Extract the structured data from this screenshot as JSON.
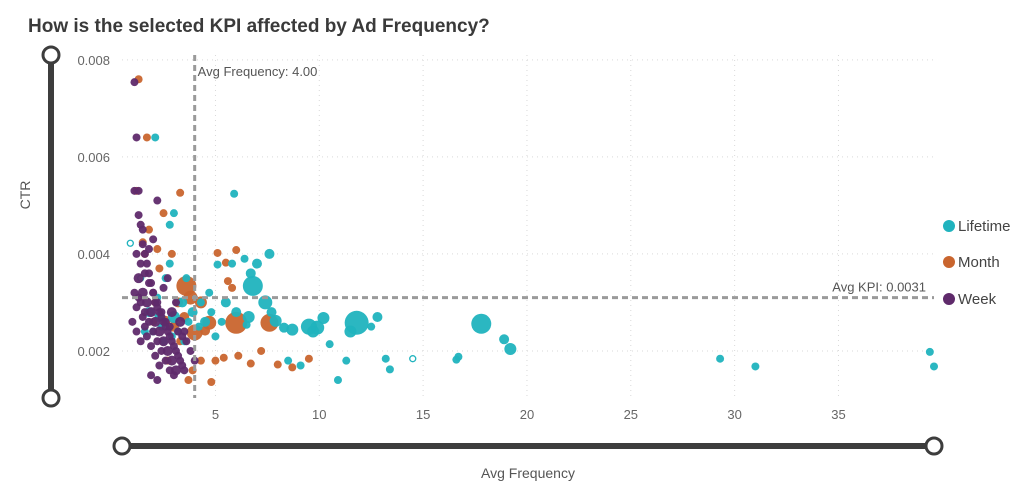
{
  "colors": {
    "Lifetime": "#20b3be",
    "Month": "#c9652e",
    "Week": "#5f2a6b",
    "refline": "#9a9a9a",
    "slider": "#3d3d3d"
  },
  "chart_data": {
    "type": "scatter",
    "title": "How is the selected KPI affected by Ad Frequency?",
    "xlabel": "Avg Frequency",
    "ylabel": "CTR",
    "xlim": [
      0.5,
      39.6
    ],
    "ylim": [
      0.00103,
      0.0081
    ],
    "xticks": [
      "5",
      "10",
      "15",
      "20",
      "25",
      "30",
      "35"
    ],
    "yticks": [
      "0.002",
      "0.004",
      "0.006",
      "0.008"
    ],
    "grid": true,
    "legend_position": "right",
    "reference_lines": {
      "x": {
        "value": 4.0,
        "label": "Avg Frequency: 4.00"
      },
      "y": {
        "value": 0.0031,
        "label": "Avg KPI: 0.0031"
      }
    },
    "series": [
      {
        "name": "Lifetime",
        "points": [
          [
            39.6,
            0.00168,
            4
          ],
          [
            39.4,
            0.00198,
            4
          ],
          [
            31.0,
            0.00168,
            4
          ],
          [
            29.3,
            0.00184,
            4
          ],
          [
            19.2,
            0.00204,
            6
          ],
          [
            18.9,
            0.00224,
            5
          ],
          [
            17.8,
            0.00256,
            10
          ],
          [
            16.7,
            0.00188,
            4
          ],
          [
            16.6,
            0.00182,
            4
          ],
          [
            13.4,
            0.00162,
            4
          ],
          [
            13.2,
            0.00184,
            4
          ],
          [
            12.8,
            0.0027,
            5
          ],
          [
            12.5,
            0.0025,
            4
          ],
          [
            11.8,
            0.00258,
            12
          ],
          [
            11.5,
            0.0024,
            6
          ],
          [
            11.3,
            0.0018,
            4
          ],
          [
            10.9,
            0.0014,
            4
          ],
          [
            10.5,
            0.00214,
            4
          ],
          [
            10.2,
            0.00268,
            6
          ],
          [
            9.9,
            0.00248,
            7
          ],
          [
            9.7,
            0.0024,
            6
          ],
          [
            9.5,
            0.0025,
            8
          ],
          [
            9.1,
            0.0017,
            4
          ],
          [
            8.7,
            0.00244,
            6
          ],
          [
            8.5,
            0.0018,
            4
          ],
          [
            8.3,
            0.00248,
            5
          ],
          [
            7.9,
            0.00262,
            6
          ],
          [
            7.7,
            0.0028,
            5
          ],
          [
            7.6,
            0.004,
            5
          ],
          [
            7.4,
            0.003,
            7
          ],
          [
            7.0,
            0.0038,
            5
          ],
          [
            6.8,
            0.00334,
            10
          ],
          [
            6.7,
            0.0036,
            5
          ],
          [
            6.6,
            0.0027,
            6
          ],
          [
            6.5,
            0.00254,
            4
          ],
          [
            6.4,
            0.0039,
            4
          ],
          [
            6.0,
            0.0028,
            5
          ],
          [
            5.9,
            0.00524,
            4
          ],
          [
            5.8,
            0.0038,
            4
          ],
          [
            5.5,
            0.003,
            5
          ],
          [
            5.3,
            0.0026,
            4
          ],
          [
            5.1,
            0.00378,
            4
          ],
          [
            5.0,
            0.0023,
            4
          ],
          [
            4.8,
            0.0028,
            4
          ],
          [
            4.7,
            0.0032,
            4
          ],
          [
            4.5,
            0.0026,
            5
          ],
          [
            4.3,
            0.003,
            4
          ],
          [
            4.2,
            0.0025,
            4
          ],
          [
            3.9,
            0.0028,
            5
          ],
          [
            3.7,
            0.0026,
            4
          ],
          [
            3.5,
            0.0022,
            4
          ],
          [
            3.4,
            0.003,
            5
          ],
          [
            3.2,
            0.0024,
            4
          ],
          [
            3.0,
            0.0027,
            6
          ],
          [
            2.9,
            0.0023,
            4
          ],
          [
            2.8,
            0.0038,
            4
          ],
          [
            2.6,
            0.0035,
            4
          ],
          [
            2.5,
            0.0022,
            4
          ],
          [
            2.4,
            0.0025,
            4
          ],
          [
            2.3,
            0.0027,
            5
          ],
          [
            2.2,
            0.0031,
            4
          ],
          [
            2.1,
            0.0064,
            4
          ],
          [
            2.0,
            0.0024,
            4
          ],
          [
            1.9,
            0.0028,
            4
          ],
          [
            3.0,
            0.00484,
            4
          ],
          [
            2.8,
            0.0046,
            4
          ],
          [
            1.8,
            0.0028,
            5
          ],
          [
            1.6,
            0.0024,
            4
          ],
          [
            3.6,
            0.0035,
            4
          ]
        ],
        "hollow": [
          [
            14.5,
            0.00184,
            3
          ],
          [
            0.9,
            0.00422,
            3
          ],
          [
            1.4,
            0.0035,
            3
          ]
        ]
      },
      {
        "name": "Month",
        "points": [
          [
            7.6,
            0.00258,
            9
          ],
          [
            6.0,
            0.00258,
            11
          ],
          [
            4.7,
            0.00258,
            7
          ],
          [
            4.5,
            0.00242,
            5
          ],
          [
            4.3,
            0.003,
            6
          ],
          [
            4.0,
            0.00238,
            8
          ],
          [
            3.8,
            0.0031,
            7
          ],
          [
            3.6,
            0.00334,
            10
          ],
          [
            3.5,
            0.0027,
            5
          ],
          [
            3.3,
            0.0022,
            4
          ],
          [
            3.2,
            0.003,
            5
          ],
          [
            3.0,
            0.0025,
            5
          ],
          [
            2.9,
            0.004,
            4
          ],
          [
            2.6,
            0.00262,
            5
          ],
          [
            2.3,
            0.0037,
            4
          ],
          [
            2.2,
            0.0041,
            4
          ],
          [
            2.1,
            0.003,
            4
          ],
          [
            2.0,
            0.0026,
            4
          ],
          [
            1.8,
            0.0045,
            4
          ],
          [
            1.7,
            0.0064,
            4
          ],
          [
            1.5,
            0.00424,
            4
          ],
          [
            1.3,
            0.0076,
            4
          ],
          [
            1.2,
            0.0053,
            4
          ],
          [
            3.3,
            0.00526,
            4
          ],
          [
            2.5,
            0.00484,
            4
          ],
          [
            1.6,
            0.004,
            4
          ],
          [
            8.0,
            0.00172,
            4
          ],
          [
            8.7,
            0.00166,
            4
          ],
          [
            7.2,
            0.002,
            4
          ],
          [
            6.7,
            0.00174,
            4
          ],
          [
            6.1,
            0.0019,
            4
          ],
          [
            5.4,
            0.00186,
            4
          ],
          [
            5.0,
            0.0018,
            4
          ],
          [
            4.8,
            0.00136,
            4
          ],
          [
            4.3,
            0.0018,
            4
          ],
          [
            3.9,
            0.0016,
            4
          ],
          [
            6.0,
            0.00408,
            4
          ],
          [
            5.8,
            0.0033,
            4
          ],
          [
            5.6,
            0.00344,
            4
          ],
          [
            5.1,
            0.00402,
            4
          ],
          [
            5.5,
            0.00382,
            4
          ],
          [
            9.5,
            0.00184,
            4
          ],
          [
            3.7,
            0.0014,
            4
          ],
          [
            2.7,
            0.0018,
            4
          ]
        ],
        "hollow": []
      },
      {
        "name": "Week",
        "points": [
          [
            1.1,
            0.00754,
            4
          ],
          [
            1.2,
            0.0064,
            4
          ],
          [
            1.3,
            0.0053,
            4
          ],
          [
            1.4,
            0.0046,
            4
          ],
          [
            1.5,
            0.0042,
            4
          ],
          [
            1.6,
            0.004,
            4
          ],
          [
            1.7,
            0.0038,
            4
          ],
          [
            1.8,
            0.0036,
            4
          ],
          [
            1.9,
            0.0034,
            4
          ],
          [
            2.0,
            0.0032,
            4
          ],
          [
            2.1,
            0.003,
            4
          ],
          [
            2.2,
            0.0029,
            4
          ],
          [
            2.3,
            0.0028,
            4
          ],
          [
            2.4,
            0.0027,
            4
          ],
          [
            2.5,
            0.0026,
            4
          ],
          [
            2.6,
            0.0025,
            4
          ],
          [
            2.7,
            0.0024,
            4
          ],
          [
            2.8,
            0.0023,
            4
          ],
          [
            2.9,
            0.0022,
            4
          ],
          [
            3.0,
            0.0021,
            4
          ],
          [
            3.1,
            0.002,
            4
          ],
          [
            3.2,
            0.0019,
            4
          ],
          [
            3.3,
            0.0018,
            4
          ],
          [
            3.4,
            0.0017,
            4
          ],
          [
            3.5,
            0.0016,
            4
          ],
          [
            1.3,
            0.0035,
            5
          ],
          [
            1.5,
            0.0032,
            5
          ],
          [
            1.7,
            0.003,
            5
          ],
          [
            1.9,
            0.0028,
            5
          ],
          [
            2.1,
            0.0026,
            5
          ],
          [
            2.3,
            0.0024,
            5
          ],
          [
            2.5,
            0.0022,
            5
          ],
          [
            2.7,
            0.002,
            5
          ],
          [
            2.9,
            0.0018,
            5
          ],
          [
            3.1,
            0.0016,
            5
          ],
          [
            1.4,
            0.003,
            4
          ],
          [
            1.6,
            0.0028,
            4
          ],
          [
            1.8,
            0.0026,
            4
          ],
          [
            2.0,
            0.0024,
            4
          ],
          [
            2.2,
            0.0022,
            4
          ],
          [
            2.4,
            0.002,
            4
          ],
          [
            2.6,
            0.0018,
            4
          ],
          [
            2.8,
            0.0016,
            4
          ],
          [
            3.0,
            0.0015,
            4
          ],
          [
            1.2,
            0.004,
            4
          ],
          [
            1.4,
            0.0038,
            4
          ],
          [
            1.6,
            0.0036,
            4
          ],
          [
            1.8,
            0.0034,
            4
          ],
          [
            2.0,
            0.0032,
            4
          ],
          [
            2.2,
            0.003,
            4
          ],
          [
            2.4,
            0.0028,
            4
          ],
          [
            2.6,
            0.0026,
            4
          ],
          [
            2.8,
            0.0025,
            4
          ],
          [
            3.2,
            0.0024,
            4
          ],
          [
            3.4,
            0.0023,
            4
          ],
          [
            3.6,
            0.0022,
            4
          ],
          [
            1.3,
            0.0031,
            4
          ],
          [
            1.5,
            0.0027,
            4
          ],
          [
            1.7,
            0.0023,
            4
          ],
          [
            1.9,
            0.0021,
            4
          ],
          [
            2.1,
            0.0019,
            4
          ],
          [
            2.3,
            0.0017,
            4
          ],
          [
            3.8,
            0.002,
            4
          ],
          [
            4.0,
            0.0018,
            4
          ],
          [
            1.2,
            0.0029,
            4
          ],
          [
            2.5,
            0.0033,
            4
          ],
          [
            2.7,
            0.0035,
            4
          ],
          [
            3.3,
            0.0026,
            5
          ],
          [
            3.5,
            0.0024,
            4
          ],
          [
            1.1,
            0.0053,
            4
          ],
          [
            1.3,
            0.0048,
            4
          ],
          [
            1.5,
            0.0045,
            4
          ],
          [
            2.2,
            0.0051,
            4
          ],
          [
            2.0,
            0.0043,
            4
          ],
          [
            1.8,
            0.0041,
            4
          ],
          [
            1.6,
            0.0025,
            4
          ],
          [
            1.4,
            0.0022,
            4
          ],
          [
            1.2,
            0.0024,
            4
          ],
          [
            2.9,
            0.0028,
            5
          ],
          [
            3.1,
            0.003,
            4
          ],
          [
            1.0,
            0.0026,
            4
          ],
          [
            1.1,
            0.0032,
            4
          ],
          [
            1.9,
            0.0015,
            4
          ],
          [
            2.2,
            0.0014,
            4
          ]
        ],
        "hollow": []
      }
    ]
  }
}
